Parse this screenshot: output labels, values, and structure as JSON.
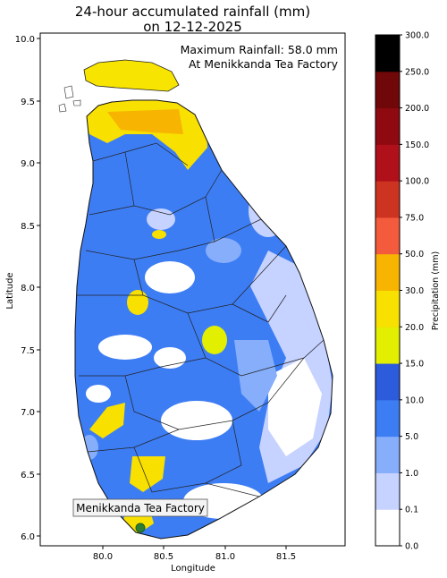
{
  "map": {
    "title_line1": "24-hour accumulated rainfall (mm)",
    "title_line2": "on 12-12-2025",
    "max_label_line1": "Maximum Rainfall: 58.0 mm",
    "max_label_line2": "At Menikkanda Tea Factory",
    "marker_label": "Menikkanda Tea Factory",
    "marker_color": "#2e7d32",
    "x_axis_label": "Longitude",
    "y_axis_label": "Latitude",
    "x_ticks": [
      "80.0",
      "80.5",
      "81.0",
      "81.5"
    ],
    "y_ticks": [
      "6.0",
      "6.5",
      "7.0",
      "7.5",
      "8.0",
      "8.5",
      "9.0",
      "9.5",
      "10.0"
    ]
  },
  "colorbar": {
    "label": "Precipitation (mm)",
    "ticks": [
      "0.0",
      "0.1",
      "1.0",
      "5.0",
      "10.0",
      "15.0",
      "20.0",
      "30.0",
      "50.0",
      "75.0",
      "100.0",
      "150.0",
      "200.0",
      "250.0",
      "300.0"
    ],
    "colors": [
      "#ffffff",
      "#c6d2ff",
      "#86aefa",
      "#3d7df4",
      "#2c5bdc",
      "#e2ef00",
      "#f8e000",
      "#f7b400",
      "#f45a3c",
      "#cc3320",
      "#b0101a",
      "#8f0a10",
      "#700708",
      "#000000"
    ]
  }
}
